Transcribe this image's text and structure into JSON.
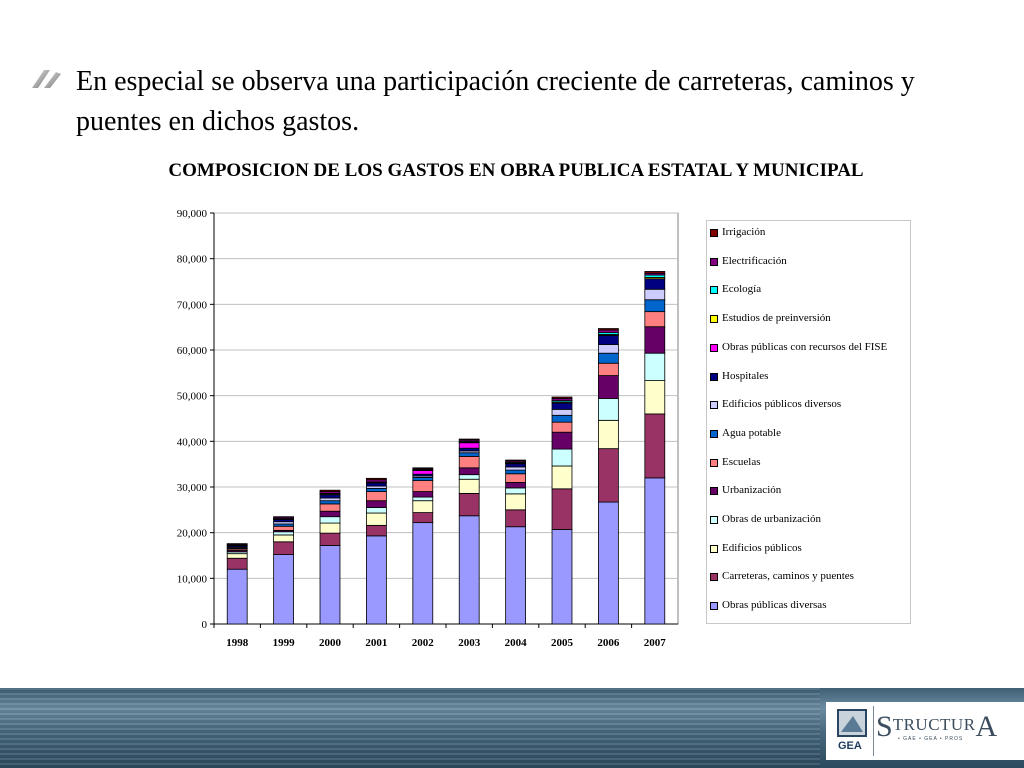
{
  "slide": {
    "bullet_text": "En especial se observa una participación creciente de carreteras, caminos y puentes en dichos gastos."
  },
  "logo": {
    "gea": "GEA",
    "structura_first": "S",
    "structura_mid": "TRUCTUR",
    "structura_last": "A",
    "structura_sub": "• GAE • GEA • PROS"
  },
  "colors": {
    "Obras públicas diversas": "#9999ff",
    "Carreteras, caminos y puentes": "#993366",
    "Edificios públicos": "#ffffcc",
    "Obras de urbanización": "#ccffff",
    "Urbanización": "#660066",
    "Escuelas": "#ff8080",
    "Agua potable": "#0066cc",
    "Edificios públicos diversos": "#ccccff",
    "Hospitales": "#000080",
    "Obras públicas con recursos del FISE": "#ff00ff",
    "Estudios de preinversión": "#ffff00",
    "Ecología": "#00ffff",
    "Electrificación": "#800080",
    "Irrigación": "#800000"
  },
  "chart_data": {
    "type": "bar",
    "stacked": true,
    "title": "COMPOSICION DE LOS GASTOS EN OBRA PUBLICA ESTATAL Y MUNICIPAL",
    "xlabel": "",
    "ylabel": "",
    "ylim": [
      0,
      90000
    ],
    "yticks": [
      "0",
      "10,000",
      "20,000",
      "30,000",
      "40,000",
      "50,000",
      "60,000",
      "70,000",
      "80,000",
      "90,000"
    ],
    "grid": true,
    "legend_position": "right",
    "categories": [
      "1998",
      "1999",
      "2000",
      "2001",
      "2002",
      "2003",
      "2004",
      "2005",
      "2006",
      "2007"
    ],
    "series": [
      {
        "name": "Obras públicas diversas",
        "values": [
          12000,
          15200,
          17200,
          19300,
          22200,
          23700,
          21300,
          20700,
          26700,
          32000
        ]
      },
      {
        "name": "Carreteras, caminos y puentes",
        "values": [
          2400,
          2800,
          2700,
          2300,
          2200,
          4900,
          3700,
          8900,
          11700,
          14000
        ]
      },
      {
        "name": "Edificios públicos",
        "values": [
          1000,
          1500,
          2200,
          2700,
          2600,
          3100,
          3500,
          5000,
          6200,
          7300
        ]
      },
      {
        "name": "Obras de urbanización",
        "values": [
          400,
          700,
          1400,
          1200,
          800,
          1000,
          1300,
          3700,
          4800,
          6000
        ]
      },
      {
        "name": "Urbanización",
        "values": [
          300,
          300,
          1200,
          1500,
          1200,
          1500,
          1200,
          3700,
          5000,
          5800
        ]
      },
      {
        "name": "Escuelas",
        "values": [
          300,
          900,
          1600,
          2000,
          2400,
          2500,
          1900,
          2200,
          2700,
          3300
        ]
      },
      {
        "name": "Agua potable",
        "values": [
          200,
          500,
          700,
          700,
          700,
          800,
          800,
          1500,
          2200,
          2600
        ]
      },
      {
        "name": "Edificios públicos diversos",
        "values": [
          200,
          500,
          600,
          500,
          300,
          400,
          700,
          1300,
          1900,
          2300
        ]
      },
      {
        "name": "Hospitales",
        "values": [
          300,
          500,
          700,
          700,
          400,
          600,
          700,
          1400,
          2000,
          2300
        ]
      },
      {
        "name": "Obras públicas con recursos del FISE",
        "values": [
          0,
          0,
          0,
          0,
          800,
          1200,
          0,
          0,
          0,
          0
        ]
      },
      {
        "name": "Estudios de preinversión",
        "values": [
          100,
          100,
          200,
          100,
          100,
          100,
          100,
          200,
          200,
          300
        ]
      },
      {
        "name": "Ecología",
        "values": [
          100,
          100,
          100,
          100,
          100,
          200,
          200,
          300,
          400,
          500
        ]
      },
      {
        "name": "Electrificación",
        "values": [
          200,
          300,
          400,
          500,
          200,
          300,
          300,
          500,
          600,
          400
        ]
      },
      {
        "name": "Irrigación",
        "values": [
          100,
          100,
          300,
          300,
          200,
          200,
          200,
          300,
          300,
          400
        ]
      }
    ]
  }
}
